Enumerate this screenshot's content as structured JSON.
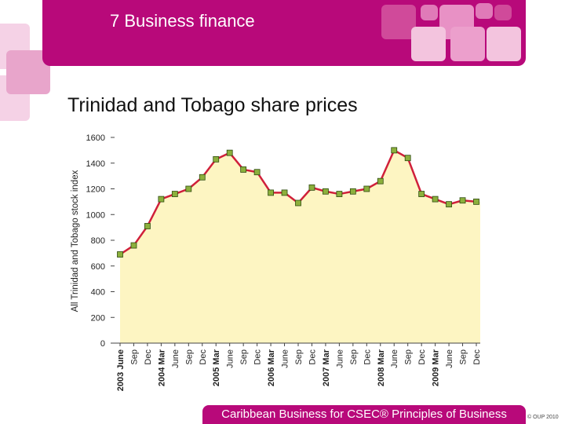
{
  "header": {
    "section_title": "7 Business finance"
  },
  "slide": {
    "title": "Trinidad and Tobago share prices"
  },
  "footer": {
    "text": "Caribbean Business for CSEC® Principles of Business",
    "copyright": "© OUP 2010"
  },
  "colors": {
    "brand": "#b8097a",
    "area_fill": "#fdf5c2",
    "line": "#d0203a",
    "marker": "#8cb03c",
    "marker_border": "#2e4a10"
  },
  "chart_data": {
    "type": "area",
    "title": "",
    "xlabel": "",
    "ylabel": "All Trinidad and Tobago stock index",
    "ylim": [
      0,
      1600
    ],
    "yticks": [
      0,
      200,
      400,
      600,
      800,
      1000,
      1200,
      1400,
      1600
    ],
    "grid": false,
    "categories": [
      "2003 June",
      "Sep",
      "Dec",
      "2004 Mar",
      "June",
      "Sep",
      "Dec",
      "2005 Mar",
      "June",
      "Sep",
      "Dec",
      "2006 Mar",
      "June",
      "Sep",
      "Dec",
      "2007 Mar",
      "June",
      "Sep",
      "Dec",
      "2008 Mar",
      "June",
      "Sep",
      "Dec",
      "2009 Mar",
      "June",
      "Sep",
      "Dec"
    ],
    "values": [
      690,
      760,
      910,
      1120,
      1160,
      1200,
      1290,
      1430,
      1480,
      1350,
      1330,
      1170,
      1170,
      1090,
      1210,
      1180,
      1160,
      1180,
      1200,
      1260,
      1500,
      1440,
      1160,
      1120,
      1080,
      1110,
      1100
    ]
  }
}
